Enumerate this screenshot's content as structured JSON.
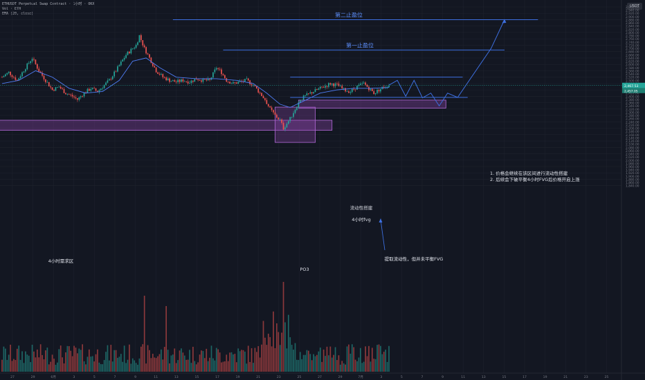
{
  "header": {
    "symbol_line": "ETHUSDT Perpetual Swap Contract · 1小时 · OKX",
    "volume_line": "Vol · ETH",
    "ema_line": "EMA (20, close)"
  },
  "price_unit": "USDT",
  "colors": {
    "background": "#131722",
    "up": "#26a69a",
    "down": "#ef5350",
    "ema": "#4f7df5",
    "drawing": "#3d6fe0",
    "zone_fill": "#8e44ad",
    "grid": "#1e222d",
    "axis_text": "#787b86",
    "price_tag": "#26a69a"
  },
  "chart_data": {
    "type": "candlestick",
    "title": "",
    "xlabel": "",
    "ylabel": "",
    "y_ticks": [
      "2,960.00",
      "2,940.00",
      "2,920.00",
      "2,900.00",
      "2,880.00",
      "2,860.00",
      "2,840.00",
      "2,820.00",
      "2,800.00",
      "2,780.00",
      "2,760.00",
      "2,740.00",
      "2,720.00",
      "2,700.00",
      "2,680.00",
      "2,660.00",
      "2,640.00",
      "2,620.00",
      "2,600.00",
      "2,580.00",
      "2,560.00",
      "2,540.00",
      "2,520.00",
      "2,500.00",
      "2,480.00",
      "2,460.00",
      "2,440.00",
      "2,420.00",
      "2,400.00",
      "2,380.00",
      "2,360.00",
      "2,340.00",
      "2,320.00",
      "2,300.00",
      "2,280.00",
      "2,260.00",
      "2,240.00",
      "2,220.00",
      "2,200.00",
      "2,180.00",
      "2,160.00",
      "2,140.00",
      "2,120.00",
      "2,100.00",
      "2,080.00",
      "2,060.00",
      "2,040.00",
      "2,020.00",
      "2,000.00",
      "1,980.00",
      "1,960.00",
      "1,940.00",
      "1,920.00",
      "1,900.00",
      "1,880.00",
      "1,860.00",
      "1,840.00"
    ],
    "x_ticks": [
      "27",
      "29",
      "6月",
      "3",
      "5",
      "7",
      "9",
      "11",
      "13",
      "15",
      "17",
      "19",
      "21",
      "23",
      "25",
      "27",
      "29",
      "7月",
      "3",
      "5",
      "7",
      "9",
      "11",
      "13",
      "15",
      "17",
      "19",
      "21",
      "23",
      "25"
    ],
    "current_price": 2467.53,
    "current_price_label": "2,467.53",
    "secondary_price_label": "2,457.05",
    "price_path": [
      [
        0,
        2520
      ],
      [
        4,
        2550
      ],
      [
        9,
        2500
      ],
      [
        14,
        2580
      ],
      [
        18,
        2640
      ],
      [
        22,
        2560
      ],
      [
        26,
        2500
      ],
      [
        30,
        2440
      ],
      [
        34,
        2460
      ],
      [
        38,
        2420
      ],
      [
        42,
        2400
      ],
      [
        45,
        2380
      ],
      [
        49,
        2420
      ],
      [
        53,
        2450
      ],
      [
        57,
        2430
      ],
      [
        61,
        2470
      ],
      [
        64,
        2500
      ],
      [
        68,
        2560
      ],
      [
        71,
        2610
      ],
      [
        74,
        2660
      ],
      [
        77,
        2690
      ],
      [
        80,
        2720
      ],
      [
        82,
        2780
      ],
      [
        85,
        2700
      ],
      [
        88,
        2640
      ],
      [
        92,
        2560
      ],
      [
        96,
        2520
      ],
      [
        100,
        2500
      ],
      [
        104,
        2490
      ],
      [
        108,
        2500
      ],
      [
        112,
        2490
      ],
      [
        116,
        2510
      ],
      [
        120,
        2500
      ],
      [
        124,
        2500
      ],
      [
        128,
        2580
      ],
      [
        131,
        2550
      ],
      [
        134,
        2500
      ],
      [
        138,
        2480
      ],
      [
        142,
        2490
      ],
      [
        146,
        2500
      ],
      [
        150,
        2470
      ],
      [
        154,
        2420
      ],
      [
        157,
        2380
      ],
      [
        160,
        2320
      ],
      [
        163,
        2280
      ],
      [
        166,
        2250
      ],
      [
        168,
        2200
      ],
      [
        170,
        2230
      ],
      [
        172,
        2260
      ],
      [
        174,
        2300
      ],
      [
        176,
        2340
      ],
      [
        178,
        2380
      ],
      [
        181,
        2400
      ],
      [
        184,
        2420
      ],
      [
        188,
        2440
      ],
      [
        192,
        2460
      ],
      [
        196,
        2480
      ],
      [
        200,
        2470
      ],
      [
        204,
        2440
      ],
      [
        208,
        2430
      ],
      [
        212,
        2460
      ],
      [
        216,
        2480
      ],
      [
        219,
        2450
      ],
      [
        222,
        2420
      ],
      [
        225,
        2440
      ],
      [
        228,
        2460
      ],
      [
        231,
        2470
      ]
    ],
    "ema_path": [
      [
        0,
        2480
      ],
      [
        10,
        2500
      ],
      [
        20,
        2560
      ],
      [
        30,
        2520
      ],
      [
        40,
        2450
      ],
      [
        50,
        2420
      ],
      [
        60,
        2430
      ],
      [
        70,
        2500
      ],
      [
        78,
        2620
      ],
      [
        86,
        2640
      ],
      [
        94,
        2580
      ],
      [
        104,
        2520
      ],
      [
        116,
        2510
      ],
      [
        128,
        2510
      ],
      [
        140,
        2500
      ],
      [
        150,
        2480
      ],
      [
        158,
        2420
      ],
      [
        166,
        2350
      ],
      [
        172,
        2330
      ],
      [
        180,
        2370
      ],
      [
        190,
        2420
      ],
      [
        200,
        2440
      ],
      [
        210,
        2450
      ],
      [
        220,
        2450
      ],
      [
        231,
        2455
      ]
    ],
    "drawings": {
      "target_2": {
        "label": "第二止盈位",
        "price": 2880,
        "from_bar": 102,
        "to_bar": 320
      },
      "target_1": {
        "label": "第一止盈位",
        "price": 2690,
        "from_bar": 132,
        "to_bar": 300
      },
      "range_top": {
        "price": 2520,
        "from_bar": 172,
        "to_bar": 275
      },
      "range_bottom": {
        "price": 2393,
        "from_bar": 172,
        "to_bar": 278
      },
      "liquidity_label": "流动性搭建",
      "fvg_4h": {
        "label": "4小时fvg",
        "price_low": 2326,
        "price_high": 2376,
        "from_bar": 177,
        "to_bar": 265
      },
      "demand_4h": {
        "label": "4小时需求区",
        "price_low": 2187,
        "price_high": 2250,
        "from_bar": -5,
        "to_bar": 197
      },
      "po3": {
        "label": "PO3",
        "price_low": 2111,
        "price_high": 2332,
        "from_bar": 163,
        "to_bar": 187
      },
      "annotation_bottom": "提取流动性，但并未平衡FVG",
      "note_line_1": "1. 价格会继续在该区间进行流动性搭建",
      "note_line_2": "2. 后续会下破平衡4小时FVG后价格开启上涨",
      "projection": [
        [
          231,
          2470
        ],
        [
          236,
          2500
        ],
        [
          241,
          2400
        ],
        [
          246,
          2500
        ],
        [
          251,
          2390
        ],
        [
          256,
          2420
        ],
        [
          261,
          2340
        ],
        [
          266,
          2420
        ],
        [
          272,
          2393
        ],
        [
          292,
          2700
        ],
        [
          300,
          2880
        ]
      ]
    }
  }
}
